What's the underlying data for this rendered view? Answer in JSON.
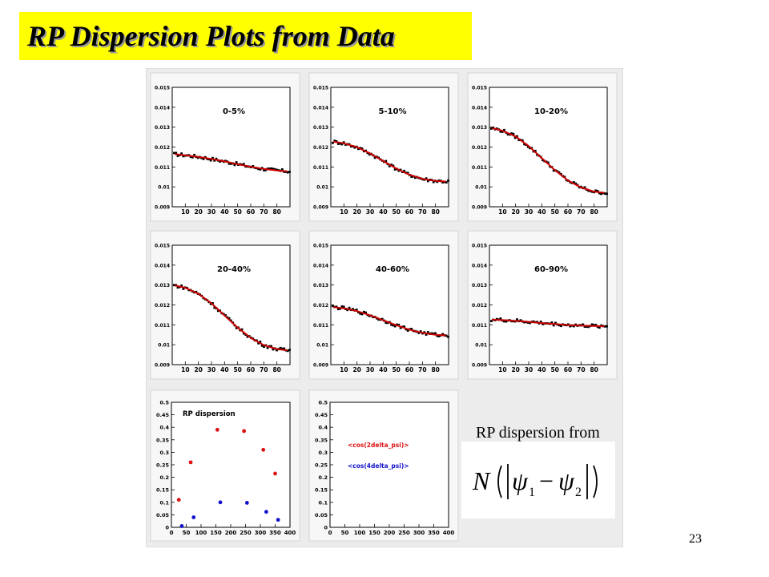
{
  "slide": {
    "title": "RP Dispersion Plots from Data",
    "caption": "RP dispersion from",
    "slide_number": "23",
    "formula": {
      "N": "N",
      "psi": "ψ",
      "sub1": "1",
      "sub2": "2",
      "minus": "−"
    }
  },
  "colors": {
    "title_bg": "#ffff00",
    "fit": "#cc0000",
    "points": "#000000",
    "red_series": "#dd1111",
    "blue_series": "#1111cc",
    "panel_border": "#d6d6d6"
  },
  "chart_data": [
    {
      "type": "scatter",
      "label": "0-5%",
      "ylim": [
        0.009,
        0.015
      ],
      "xlim": [
        0,
        90
      ],
      "yticks": [
        "0.009",
        "0.01",
        "0.011",
        "0.012",
        "0.013",
        "0.014",
        "0.015"
      ],
      "xticks": [
        "10",
        "20",
        "30",
        "40",
        "50",
        "60",
        "70",
        "80"
      ],
      "fit": {
        "x": [
          2,
          10,
          20,
          30,
          40,
          50,
          60,
          70,
          80,
          88
        ],
        "y": [
          0.01164,
          0.01159,
          0.01151,
          0.0114,
          0.01128,
          0.01114,
          0.01101,
          0.0109,
          0.01082,
          0.01078
        ]
      }
    },
    {
      "type": "scatter",
      "label": "5-10%",
      "ylim": [
        0.009,
        0.015
      ],
      "xlim": [
        0,
        90
      ],
      "yticks": [
        "0.009",
        "0.01",
        "0.011",
        "0.012",
        "0.013",
        "0.014",
        "0.015"
      ],
      "xticks": [
        "10",
        "20",
        "30",
        "40",
        "50",
        "60",
        "70",
        "80"
      ],
      "fit": {
        "x": [
          2,
          10,
          20,
          30,
          40,
          50,
          60,
          70,
          80,
          88
        ],
        "y": [
          0.01227,
          0.01219,
          0.01199,
          0.01168,
          0.0113,
          0.01092,
          0.01061,
          0.0104,
          0.0103,
          0.01027
        ]
      }
    },
    {
      "type": "scatter",
      "label": "10-20%",
      "ylim": [
        0.009,
        0.015
      ],
      "xlim": [
        0,
        90
      ],
      "yticks": [
        "0.009",
        "0.01",
        "0.011",
        "0.012",
        "0.013",
        "0.014",
        "0.015"
      ],
      "xticks": [
        "10",
        "20",
        "30",
        "40",
        "50",
        "60",
        "70",
        "80"
      ],
      "fit": {
        "x": [
          2,
          10,
          20,
          30,
          40,
          50,
          60,
          70,
          80,
          88
        ],
        "y": [
          0.01295,
          0.01282,
          0.01253,
          0.01205,
          0.01145,
          0.01084,
          0.01032,
          0.00997,
          0.00976,
          0.0097
        ]
      }
    },
    {
      "type": "scatter",
      "label": "20-40%",
      "ylim": [
        0.009,
        0.015
      ],
      "xlim": [
        0,
        90
      ],
      "yticks": [
        "0.009",
        "0.01",
        "0.011",
        "0.012",
        "0.013",
        "0.014",
        "0.015"
      ],
      "xticks": [
        "10",
        "20",
        "30",
        "40",
        "50",
        "60",
        "70",
        "80"
      ],
      "fit": {
        "x": [
          2,
          10,
          20,
          30,
          40,
          50,
          60,
          70,
          80,
          88
        ],
        "y": [
          0.01298,
          0.01286,
          0.01256,
          0.01208,
          0.01147,
          0.01086,
          0.01035,
          0.00998,
          0.00978,
          0.00972
        ]
      }
    },
    {
      "type": "scatter",
      "label": "40-60%",
      "ylim": [
        0.009,
        0.015
      ],
      "xlim": [
        0,
        90
      ],
      "yticks": [
        "0.009",
        "0.01",
        "0.011",
        "0.012",
        "0.013",
        "0.014",
        "0.015"
      ],
      "xticks": [
        "10",
        "20",
        "30",
        "40",
        "50",
        "60",
        "70",
        "80"
      ],
      "fit": {
        "x": [
          2,
          10,
          20,
          30,
          40,
          50,
          60,
          70,
          80,
          88
        ],
        "y": [
          0.01189,
          0.01183,
          0.01169,
          0.01148,
          0.01123,
          0.01098,
          0.01076,
          0.0106,
          0.0105,
          0.01047
        ]
      }
    },
    {
      "type": "scatter",
      "label": "60-90%",
      "ylim": [
        0.009,
        0.015
      ],
      "xlim": [
        0,
        90
      ],
      "yticks": [
        "0.009",
        "0.01",
        "0.011",
        "0.012",
        "0.013",
        "0.014",
        "0.015"
      ],
      "xticks": [
        "10",
        "20",
        "30",
        "40",
        "50",
        "60",
        "70",
        "80"
      ],
      "fit": {
        "x": [
          2,
          10,
          20,
          30,
          40,
          50,
          60,
          70,
          80,
          88
        ],
        "y": [
          0.01126,
          0.01124,
          0.0112,
          0.01115,
          0.01109,
          0.01104,
          0.01099,
          0.01096,
          0.01094,
          0.01093
        ]
      }
    },
    {
      "type": "scatter",
      "title": "RP dispersion",
      "ylim": [
        0,
        0.5
      ],
      "xlim": [
        0,
        400
      ],
      "yticks": [
        "0",
        "0.05",
        "0.1",
        "0.15",
        "0.2",
        "0.25",
        "0.3",
        "0.35",
        "0.4",
        "0.45",
        "0.5"
      ],
      "xticks": [
        "0",
        "50",
        "100",
        "150",
        "200",
        "250",
        "300",
        "350",
        "400"
      ],
      "series": [
        {
          "color": "red",
          "x": [
            25,
            65,
            155,
            245,
            310,
            350
          ],
          "y": [
            0.11,
            0.26,
            0.39,
            0.385,
            0.31,
            0.215
          ]
        },
        {
          "color": "blue",
          "x": [
            35,
            75,
            165,
            255,
            320,
            360
          ],
          "y": [
            0.005,
            0.04,
            0.1,
            0.098,
            0.062,
            0.03
          ]
        }
      ]
    },
    {
      "type": "scatter",
      "ylim": [
        0,
        0.5
      ],
      "xlim": [
        0,
        400
      ],
      "yticks": [
        "0",
        "0.05",
        "0.1",
        "0.15",
        "0.2",
        "0.25",
        "0.3",
        "0.35",
        "0.4",
        "0.45",
        "0.5"
      ],
      "xticks": [
        "0",
        "50",
        "100",
        "150",
        "200",
        "250",
        "300",
        "350",
        "400"
      ],
      "legend": [
        {
          "label": "<cos(2delta_psi)>",
          "color": "red"
        },
        {
          "label": "<cos(4delta_psi)>",
          "color": "blue"
        }
      ]
    }
  ]
}
